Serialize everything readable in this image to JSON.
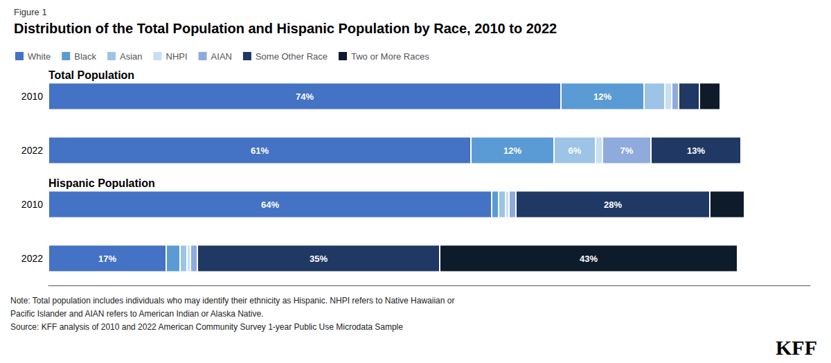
{
  "chart_data": {
    "type": "bar",
    "orientation": "horizontal",
    "stacked": true,
    "subtitle": "Figure 1",
    "title": "Distribution of the Total Population and Hispanic Population by Race, 2010 to 2022",
    "categories": [
      "2010",
      "2022",
      "2010",
      "2022"
    ],
    "series": [
      {
        "name": "White",
        "color": "#4472C4",
        "values": [
          74,
          61,
          64,
          17
        ],
        "value_labels": [
          "74%",
          "61%",
          "64%",
          "17%"
        ]
      },
      {
        "name": "Black",
        "color": "#5B9BD5",
        "values": [
          12,
          12,
          1,
          2
        ],
        "value_labels": [
          "12%",
          "12%",
          null,
          null
        ]
      },
      {
        "name": "Asian",
        "color": "#9DC3E6",
        "values": [
          3,
          6,
          1,
          1
        ],
        "value_labels": [
          null,
          "6%",
          null,
          null
        ]
      },
      {
        "name": "NHPI",
        "color": "#C5E0F5",
        "values": [
          1,
          1,
          0.5,
          0.5
        ]
      },
      {
        "name": "AIAN",
        "color": "#8FAADC",
        "values": [
          1,
          7,
          1,
          1
        ],
        "value_labels": [
          null,
          "7%",
          null,
          null
        ]
      },
      {
        "name": "Some Other Race",
        "color": "#1F3864",
        "values": [
          3,
          13,
          28,
          35
        ],
        "value_labels": [
          null,
          "13%",
          "28%",
          "35%"
        ]
      },
      {
        "name": "Two or More Races",
        "color": "#0D1B2A",
        "values": [
          3,
          0,
          5,
          43
        ],
        "value_labels": [
          null,
          null,
          null,
          "43%"
        ]
      }
    ],
    "xlim": [
      0,
      110
    ],
    "tick_labels": "y",
    "grid": false,
    "legend": "upper left",
    "annotations": [
      {
        "text": "Total Population",
        "category": 0
      },
      {
        "text": "Hispanic Population",
        "category": 2
      },
      {
        "text": "Note: Total population includes individuals who may identify their ethnicity as Hispanic. NHPI refers to Native Hawaiian or"
      },
      {
        "text": "Pacific Islander and AIAN refers to American Indian or Alaska Native."
      },
      {
        "text": "Source: KFF analysis of 2010 and 2022 American Community Survey 1-year Public Use Microdata Sample"
      },
      {
        "text": "KFF",
        "style": "logo"
      }
    ]
  }
}
